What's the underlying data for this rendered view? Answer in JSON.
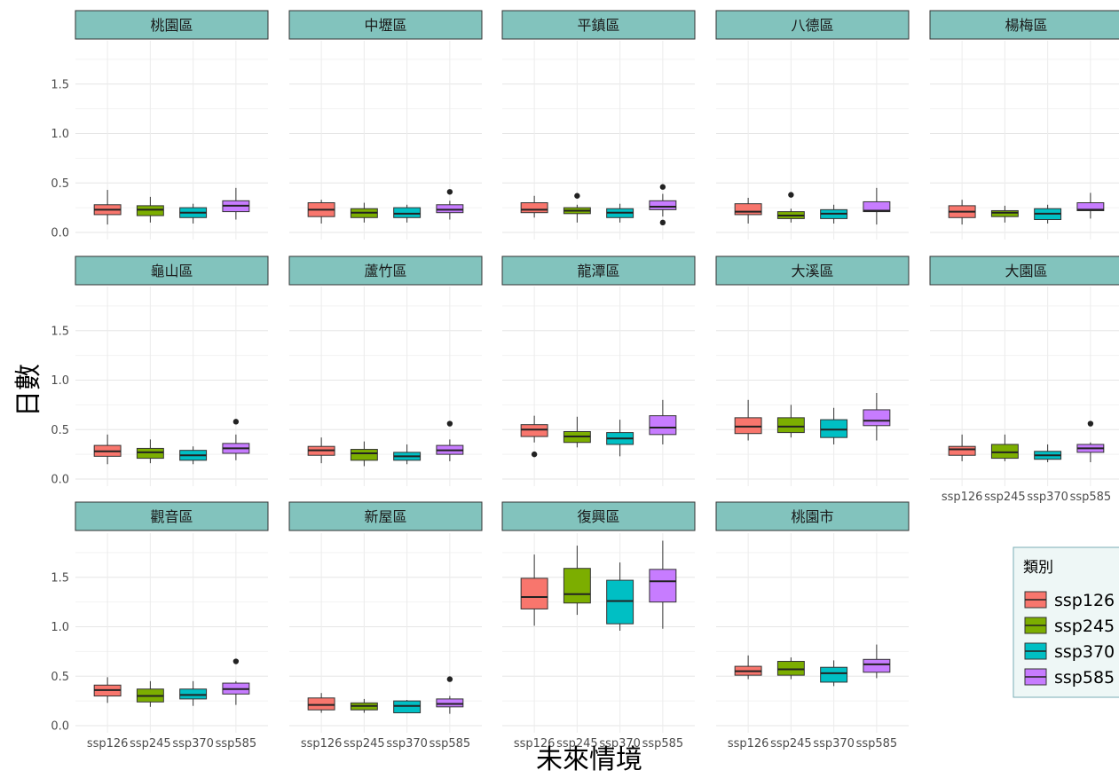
{
  "chart_data": {
    "type": "box",
    "xlabel": "未來情境",
    "ylabel": "日數",
    "ylim": [
      0,
      1.9
    ],
    "yticks": [
      0.0,
      0.5,
      1.0,
      1.5
    ],
    "ytick_labels": [
      "0.0",
      "0.5",
      "1.0",
      "1.5"
    ],
    "grid": true,
    "categories": [
      "ssp126",
      "ssp245",
      "ssp370",
      "ssp585"
    ],
    "legend": {
      "title": "類別",
      "position": "right",
      "entries": [
        {
          "label": "ssp126",
          "color": "#F8766D"
        },
        {
          "label": "ssp245",
          "color": "#7CAE00"
        },
        {
          "label": "ssp370",
          "color": "#00BFC4"
        },
        {
          "label": "ssp585",
          "color": "#C77CFF"
        }
      ]
    },
    "strip_color": "#82C3BD",
    "panels": [
      {
        "name": "桃園區",
        "boxes": [
          {
            "min": 0.08,
            "q1": 0.18,
            "median": 0.23,
            "q3": 0.28,
            "max": 0.43,
            "outliers": []
          },
          {
            "min": 0.1,
            "q1": 0.17,
            "median": 0.23,
            "q3": 0.27,
            "max": 0.36,
            "outliers": []
          },
          {
            "min": 0.09,
            "q1": 0.15,
            "median": 0.2,
            "q3": 0.25,
            "max": 0.29,
            "outliers": []
          },
          {
            "min": 0.13,
            "q1": 0.21,
            "median": 0.27,
            "q3": 0.32,
            "max": 0.45,
            "outliers": []
          }
        ]
      },
      {
        "name": "中壢區",
        "boxes": [
          {
            "min": 0.09,
            "q1": 0.16,
            "median": 0.23,
            "q3": 0.3,
            "max": 0.33,
            "outliers": []
          },
          {
            "min": 0.1,
            "q1": 0.15,
            "median": 0.2,
            "q3": 0.24,
            "max": 0.3,
            "outliers": []
          },
          {
            "min": 0.1,
            "q1": 0.15,
            "median": 0.19,
            "q3": 0.25,
            "max": 0.28,
            "outliers": []
          },
          {
            "min": 0.13,
            "q1": 0.2,
            "median": 0.23,
            "q3": 0.28,
            "max": 0.32,
            "outliers": [
              0.41
            ]
          }
        ]
      },
      {
        "name": "平鎮區",
        "boxes": [
          {
            "min": 0.15,
            "q1": 0.2,
            "median": 0.23,
            "q3": 0.3,
            "max": 0.37,
            "outliers": []
          },
          {
            "min": 0.1,
            "q1": 0.19,
            "median": 0.22,
            "q3": 0.25,
            "max": 0.28,
            "outliers": [
              0.37
            ]
          },
          {
            "min": 0.1,
            "q1": 0.15,
            "median": 0.2,
            "q3": 0.24,
            "max": 0.29,
            "outliers": []
          },
          {
            "min": 0.16,
            "q1": 0.23,
            "median": 0.26,
            "q3": 0.32,
            "max": 0.39,
            "outliers": [
              0.46,
              0.1
            ]
          }
        ]
      },
      {
        "name": "八德區",
        "boxes": [
          {
            "min": 0.09,
            "q1": 0.18,
            "median": 0.21,
            "q3": 0.29,
            "max": 0.35,
            "outliers": []
          },
          {
            "min": 0.1,
            "q1": 0.14,
            "median": 0.17,
            "q3": 0.21,
            "max": 0.24,
            "outliers": [
              0.38
            ]
          },
          {
            "min": 0.09,
            "q1": 0.14,
            "median": 0.19,
            "q3": 0.23,
            "max": 0.28,
            "outliers": []
          },
          {
            "min": 0.08,
            "q1": 0.21,
            "median": 0.22,
            "q3": 0.31,
            "max": 0.45,
            "outliers": []
          }
        ]
      },
      {
        "name": "楊梅區",
        "boxes": [
          {
            "min": 0.08,
            "q1": 0.15,
            "median": 0.21,
            "q3": 0.27,
            "max": 0.33,
            "outliers": []
          },
          {
            "min": 0.1,
            "q1": 0.16,
            "median": 0.2,
            "q3": 0.22,
            "max": 0.27,
            "outliers": []
          },
          {
            "min": 0.09,
            "q1": 0.13,
            "median": 0.19,
            "q3": 0.24,
            "max": 0.28,
            "outliers": []
          },
          {
            "min": 0.14,
            "q1": 0.22,
            "median": 0.23,
            "q3": 0.3,
            "max": 0.4,
            "outliers": []
          }
        ]
      },
      {
        "name": "龜山區",
        "boxes": [
          {
            "min": 0.15,
            "q1": 0.23,
            "median": 0.28,
            "q3": 0.34,
            "max": 0.45,
            "outliers": []
          },
          {
            "min": 0.16,
            "q1": 0.21,
            "median": 0.27,
            "q3": 0.31,
            "max": 0.4,
            "outliers": []
          },
          {
            "min": 0.15,
            "q1": 0.19,
            "median": 0.24,
            "q3": 0.29,
            "max": 0.33,
            "outliers": []
          },
          {
            "min": 0.19,
            "q1": 0.26,
            "median": 0.31,
            "q3": 0.36,
            "max": 0.45,
            "outliers": [
              0.58
            ]
          }
        ]
      },
      {
        "name": "蘆竹區",
        "boxes": [
          {
            "min": 0.16,
            "q1": 0.24,
            "median": 0.29,
            "q3": 0.33,
            "max": 0.42,
            "outliers": []
          },
          {
            "min": 0.13,
            "q1": 0.19,
            "median": 0.26,
            "q3": 0.3,
            "max": 0.38,
            "outliers": []
          },
          {
            "min": 0.15,
            "q1": 0.19,
            "median": 0.23,
            "q3": 0.27,
            "max": 0.35,
            "outliers": []
          },
          {
            "min": 0.18,
            "q1": 0.25,
            "median": 0.29,
            "q3": 0.34,
            "max": 0.4,
            "outliers": [
              0.56
            ]
          }
        ]
      },
      {
        "name": "龍潭區",
        "boxes": [
          {
            "min": 0.37,
            "q1": 0.43,
            "median": 0.5,
            "q3": 0.55,
            "max": 0.64,
            "outliers": [
              0.25
            ]
          },
          {
            "min": 0.32,
            "q1": 0.37,
            "median": 0.43,
            "q3": 0.48,
            "max": 0.63,
            "outliers": []
          },
          {
            "min": 0.23,
            "q1": 0.35,
            "median": 0.41,
            "q3": 0.47,
            "max": 0.6,
            "outliers": []
          },
          {
            "min": 0.35,
            "q1": 0.45,
            "median": 0.52,
            "q3": 0.64,
            "max": 0.8,
            "outliers": []
          }
        ]
      },
      {
        "name": "大溪區",
        "boxes": [
          {
            "min": 0.39,
            "q1": 0.46,
            "median": 0.53,
            "q3": 0.62,
            "max": 0.8,
            "outliers": []
          },
          {
            "min": 0.42,
            "q1": 0.47,
            "median": 0.53,
            "q3": 0.62,
            "max": 0.75,
            "outliers": []
          },
          {
            "min": 0.35,
            "q1": 0.42,
            "median": 0.5,
            "q3": 0.6,
            "max": 0.72,
            "outliers": []
          },
          {
            "min": 0.39,
            "q1": 0.54,
            "median": 0.59,
            "q3": 0.7,
            "max": 0.87,
            "outliers": []
          }
        ]
      },
      {
        "name": "大園區",
        "boxes": [
          {
            "min": 0.18,
            "q1": 0.24,
            "median": 0.3,
            "q3": 0.33,
            "max": 0.45,
            "outliers": []
          },
          {
            "min": 0.18,
            "q1": 0.21,
            "median": 0.27,
            "q3": 0.35,
            "max": 0.45,
            "outliers": []
          },
          {
            "min": 0.17,
            "q1": 0.2,
            "median": 0.24,
            "q3": 0.28,
            "max": 0.35,
            "outliers": []
          },
          {
            "min": 0.17,
            "q1": 0.27,
            "median": 0.31,
            "q3": 0.35,
            "max": 0.37,
            "outliers": [
              0.56
            ]
          }
        ]
      },
      {
        "name": "觀音區",
        "boxes": [
          {
            "min": 0.23,
            "q1": 0.3,
            "median": 0.36,
            "q3": 0.41,
            "max": 0.49,
            "outliers": []
          },
          {
            "min": 0.19,
            "q1": 0.24,
            "median": 0.3,
            "q3": 0.37,
            "max": 0.45,
            "outliers": []
          },
          {
            "min": 0.2,
            "q1": 0.27,
            "median": 0.31,
            "q3": 0.37,
            "max": 0.45,
            "outliers": []
          },
          {
            "min": 0.21,
            "q1": 0.32,
            "median": 0.37,
            "q3": 0.43,
            "max": 0.45,
            "outliers": [
              0.65
            ]
          }
        ]
      },
      {
        "name": "新屋區",
        "boxes": [
          {
            "min": 0.13,
            "q1": 0.16,
            "median": 0.21,
            "q3": 0.28,
            "max": 0.33,
            "outliers": []
          },
          {
            "min": 0.13,
            "q1": 0.16,
            "median": 0.2,
            "q3": 0.23,
            "max": 0.27,
            "outliers": []
          },
          {
            "min": 0.13,
            "q1": 0.13,
            "median": 0.2,
            "q3": 0.25,
            "max": 0.26,
            "outliers": []
          },
          {
            "min": 0.12,
            "q1": 0.19,
            "median": 0.22,
            "q3": 0.27,
            "max": 0.3,
            "outliers": [
              0.47
            ]
          }
        ]
      },
      {
        "name": "復興區",
        "boxes": [
          {
            "min": 1.01,
            "q1": 1.18,
            "median": 1.3,
            "q3": 1.49,
            "max": 1.73,
            "outliers": []
          },
          {
            "min": 1.12,
            "q1": 1.24,
            "median": 1.33,
            "q3": 1.59,
            "max": 1.82,
            "outliers": []
          },
          {
            "min": 0.96,
            "q1": 1.03,
            "median": 1.26,
            "q3": 1.47,
            "max": 1.65,
            "outliers": []
          },
          {
            "min": 0.98,
            "q1": 1.25,
            "median": 1.46,
            "q3": 1.58,
            "max": 1.87,
            "outliers": []
          }
        ]
      },
      {
        "name": "桃園市",
        "boxes": [
          {
            "min": 0.47,
            "q1": 0.51,
            "median": 0.55,
            "q3": 0.6,
            "max": 0.71,
            "outliers": []
          },
          {
            "min": 0.47,
            "q1": 0.51,
            "median": 0.57,
            "q3": 0.65,
            "max": 0.69,
            "outliers": []
          },
          {
            "min": 0.4,
            "q1": 0.44,
            "median": 0.53,
            "q3": 0.59,
            "max": 0.66,
            "outliers": []
          },
          {
            "min": 0.48,
            "q1": 0.54,
            "median": 0.62,
            "q3": 0.67,
            "max": 0.82,
            "outliers": []
          }
        ]
      }
    ]
  }
}
